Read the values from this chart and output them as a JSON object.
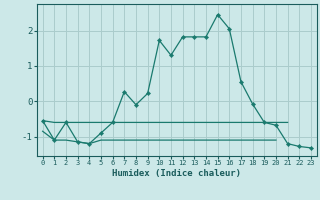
{
  "xlabel": "Humidex (Indice chaleur)",
  "x": [
    0,
    1,
    2,
    3,
    4,
    5,
    6,
    7,
    8,
    9,
    10,
    11,
    12,
    13,
    14,
    15,
    16,
    17,
    18,
    19,
    20,
    21,
    22,
    23
  ],
  "y_main": [
    -0.55,
    -1.1,
    -0.6,
    -1.15,
    -1.2,
    -0.9,
    -0.6,
    0.27,
    -0.1,
    0.22,
    1.72,
    1.3,
    1.82,
    1.82,
    1.82,
    2.45,
    2.05,
    0.55,
    -0.08,
    -0.6,
    -0.68,
    -1.2,
    -1.28,
    -1.32
  ],
  "y_flat_top": [
    -0.55,
    -0.6,
    -0.6,
    -0.6,
    -0.6,
    -0.6,
    -0.6,
    -0.6,
    -0.6,
    -0.6,
    -0.6,
    -0.6,
    -0.6,
    -0.6,
    -0.6,
    -0.6,
    -0.6,
    -0.6,
    -0.6,
    -0.6,
    -0.6,
    -0.6,
    null,
    null
  ],
  "y_flat_bot": [
    -0.85,
    -1.1,
    -1.1,
    -1.15,
    -1.2,
    -1.1,
    -1.1,
    -1.1,
    -1.1,
    -1.1,
    -1.1,
    -1.1,
    -1.1,
    -1.1,
    -1.1,
    -1.1,
    -1.1,
    -1.1,
    -1.1,
    -1.1,
    -1.1,
    null,
    null,
    null
  ],
  "line_color": "#1a7a6e",
  "bg_color": "#cce8e8",
  "grid_color": "#aacccc",
  "ylim": [
    -1.55,
    2.75
  ],
  "yticks": [
    -1,
    0,
    1,
    2
  ],
  "text_color": "#1a5c5c"
}
